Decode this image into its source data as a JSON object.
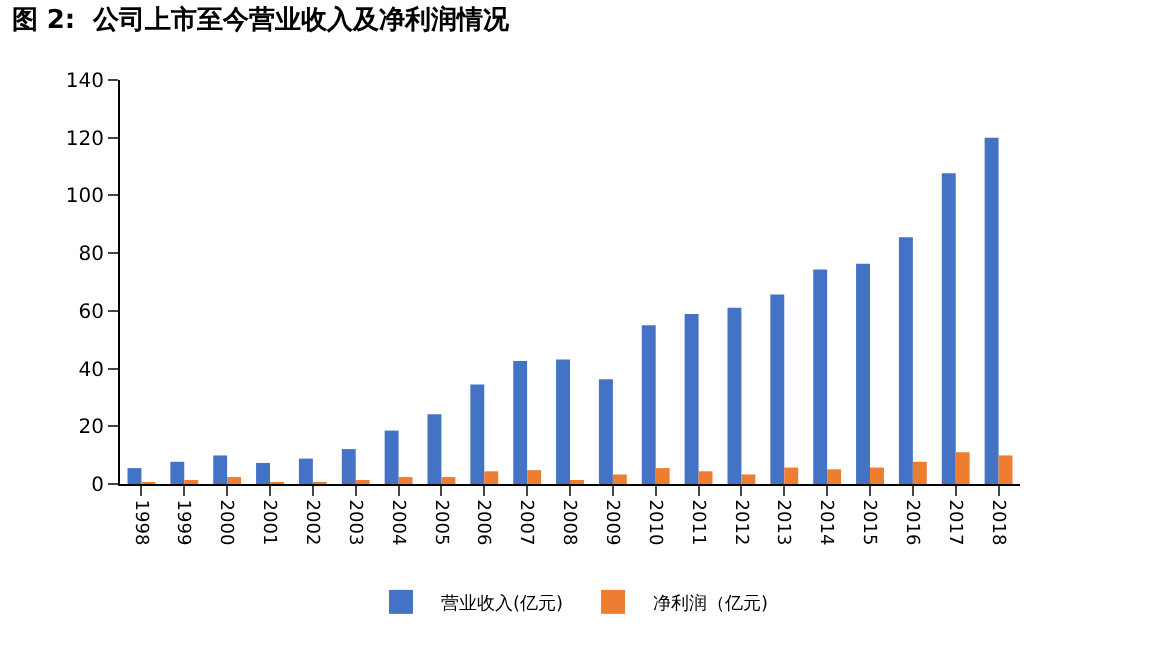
{
  "chart_data": {
    "type": "bar",
    "title": "图 2:  公司上市至今营业收入及净利润情况",
    "categories": [
      "1998",
      "1999",
      "2000",
      "2001",
      "2002",
      "2003",
      "2004",
      "2005",
      "2006",
      "2007",
      "2008",
      "2009",
      "2010",
      "2011",
      "2012",
      "2013",
      "2014",
      "2015",
      "2016",
      "2017",
      "2018"
    ],
    "series": [
      {
        "name": "营业收入(亿元)",
        "color": "#4472c4",
        "values": [
          5.5,
          7.7,
          9.9,
          7.3,
          8.8,
          12.1,
          18.5,
          24.2,
          34.5,
          42.6,
          43.1,
          36.3,
          55,
          58.9,
          61.1,
          65.7,
          74.3,
          76.3,
          85.5,
          107.7,
          120
        ]
      },
      {
        "name": "净利润（亿元)",
        "color": "#ed7d31",
        "values": [
          0.5,
          1.1,
          2.4,
          0.3,
          0.5,
          0.9,
          2.4,
          2.4,
          4.4,
          4.8,
          1.1,
          3.3,
          5.5,
          4.4,
          3.3,
          5.7,
          5.1,
          5.7,
          7.7,
          11,
          9.9
        ]
      }
    ],
    "ylim": [
      0,
      140
    ],
    "yticks": [
      0,
      20,
      40,
      60,
      80,
      100,
      120,
      140
    ],
    "legend": "bottom"
  }
}
